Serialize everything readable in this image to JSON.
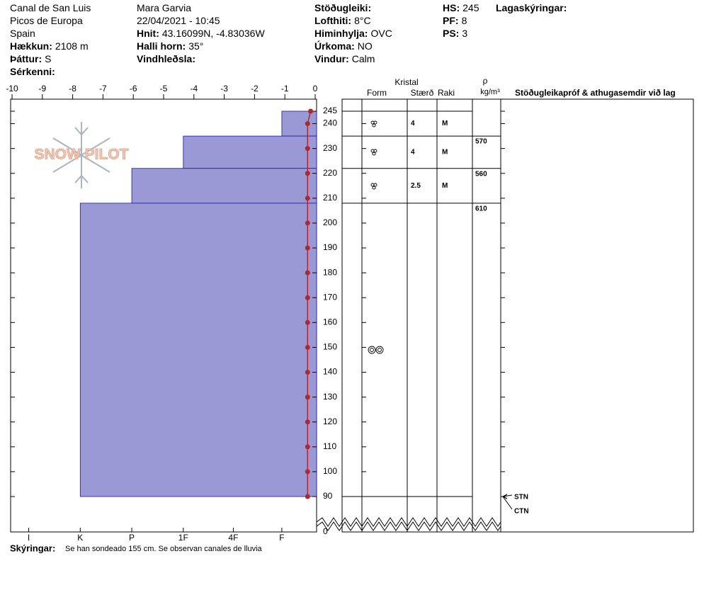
{
  "header": {
    "columns": [
      [
        {
          "text": "Canal de San Luis"
        },
        {
          "text": "Picos de Europa"
        },
        {
          "text": "Spain"
        },
        {
          "label": "Hækkun:",
          "value": "2108 m"
        },
        {
          "label": "Þáttur:",
          "value": "S"
        },
        {
          "label": "Sérkenni:"
        }
      ],
      [
        {
          "text": "Mara Garvia"
        },
        {
          "text": "22/04/2021 - 10:45"
        },
        {
          "label": "Hnit:",
          "value": "43.16099N, -4.83036W"
        },
        {
          "label": "Halli horn:",
          "value": "35°"
        },
        {
          "label": "Vindhleðsla:"
        }
      ],
      [
        {
          "label": "Stöðugleiki:"
        },
        {
          "label": "Lofthiti:",
          "value": "8°C"
        },
        {
          "label": "Himinhylja:",
          "value": "OVC"
        },
        {
          "label": "Úrkoma:",
          "value": "NO"
        },
        {
          "label": "Vindur:",
          "value": "Calm"
        }
      ],
      [
        {
          "label": "HS:",
          "value": "245"
        },
        {
          "label": "PF:",
          "value": "8"
        },
        {
          "label": "PS:",
          "value": "3"
        }
      ],
      [
        {
          "label": "Lagaskýringar:"
        }
      ]
    ]
  },
  "logo": "SNOW PILOT",
  "table_headers": {
    "crystal": "Kristal",
    "form": "Form",
    "size": "Stærð",
    "moisture": "Raki",
    "density_symbol": "ρ",
    "density_unit": "kg/m³",
    "comments": "Stöðugleikapróf & athugasemdir við lag"
  },
  "chart_data": {
    "type": "snow-profile",
    "xlim": [
      -10,
      0
    ],
    "xticks": [
      -10,
      -9,
      -8,
      -7,
      -6,
      -5,
      -4,
      -3,
      -2,
      -1,
      0
    ],
    "hardness_ticks": [
      {
        "value": -9.45,
        "label": "I"
      },
      {
        "value": -7.75,
        "label": "K"
      },
      {
        "value": -6.05,
        "label": "P"
      },
      {
        "value": -4.35,
        "label": "1F"
      },
      {
        "value": -2.7,
        "label": "4F"
      },
      {
        "value": -1.1,
        "label": "F"
      }
    ],
    "ylim": [
      90,
      245
    ],
    "yticks": [
      245,
      240,
      230,
      220,
      210,
      200,
      190,
      180,
      170,
      160,
      150,
      140,
      130,
      120,
      110,
      100,
      90
    ],
    "ground_tick": 0,
    "layer_color": "#9b98d6",
    "layers": [
      {
        "top": 245,
        "bottom": 235,
        "hardness": -1.1,
        "size": 4,
        "moisture": "M"
      },
      {
        "top": 235,
        "bottom": 222,
        "hardness": -4.35,
        "size": 4,
        "moisture": "M",
        "density": 570
      },
      {
        "top": 222,
        "bottom": 208,
        "hardness": -6.05,
        "size": 2.5,
        "moisture": "M",
        "density": 560
      },
      {
        "top": 208,
        "bottom": 90,
        "hardness": -7.75,
        "density": 610
      }
    ],
    "temperature": {
      "color": "#b0282c",
      "depth": [
        245,
        240,
        230,
        220,
        210,
        200,
        190,
        180,
        170,
        160,
        150,
        140,
        130,
        120,
        110,
        100,
        90
      ],
      "values": [
        -0.15,
        -0.25,
        -0.25,
        -0.25,
        -0.25,
        -0.25,
        -0.25,
        -0.25,
        -0.25,
        -0.25,
        -0.25,
        -0.25,
        -0.25,
        -0.25,
        -0.25,
        -0.25,
        -0.25
      ]
    },
    "tests": [
      {
        "label": "STN",
        "depth": 90
      },
      {
        "label": "CTN",
        "depth": 90
      }
    ]
  },
  "footer": {
    "label": "Skýringar:",
    "text": "Se han sondeado 155 cm. Se observan canales de lluvia"
  }
}
